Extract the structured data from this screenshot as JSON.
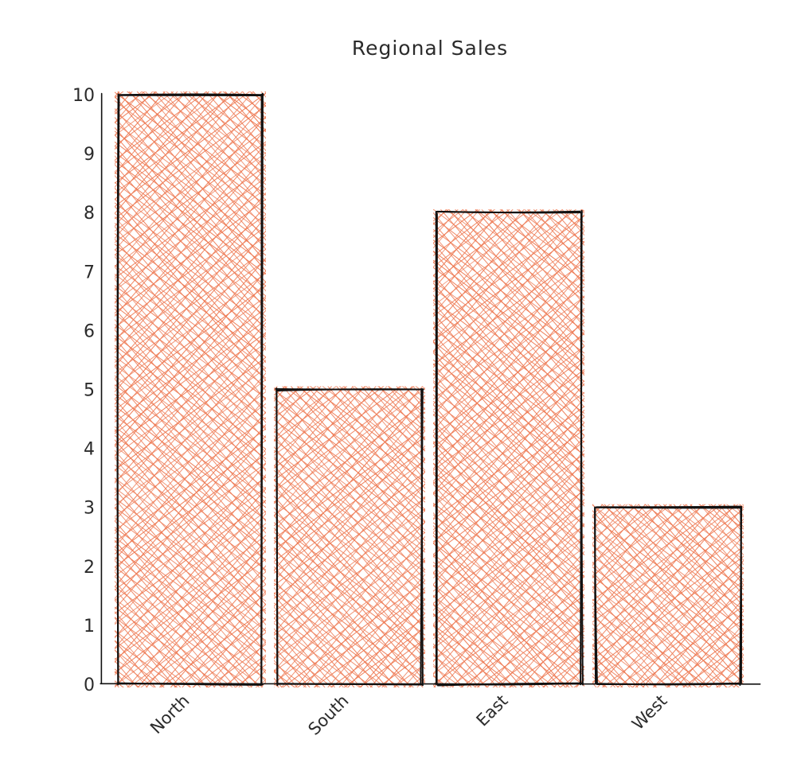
{
  "chart_data": {
    "type": "bar",
    "title": "Regional Sales",
    "xlabel": "",
    "ylabel": "",
    "categories": [
      "North",
      "South",
      "East",
      "West"
    ],
    "values": [
      10,
      5,
      8,
      3
    ],
    "ylim": [
      0,
      10
    ],
    "yticks": [
      "0",
      "1",
      "2",
      "3",
      "4",
      "5",
      "6",
      "7",
      "8",
      "9",
      "10"
    ],
    "grid": false,
    "style": "hand-drawn cross-hatched bars",
    "colors": {
      "bar_fill": "#ee7b55",
      "outline": "#111111",
      "text": "#2b2b2b"
    }
  }
}
